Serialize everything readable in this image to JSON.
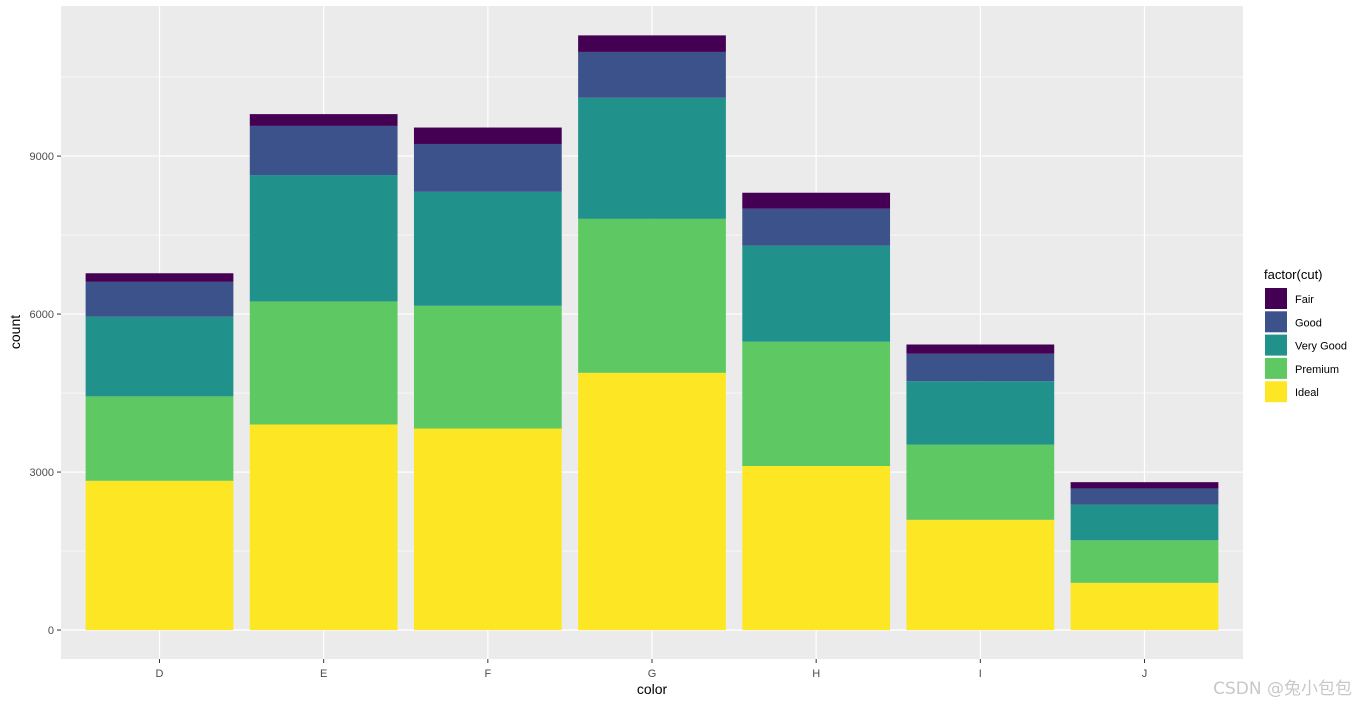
{
  "chart_data": {
    "type": "bar",
    "stacked": true,
    "title": "",
    "xlabel": "color",
    "ylabel": "count",
    "categories": [
      "D",
      "E",
      "F",
      "G",
      "H",
      "I",
      "J"
    ],
    "ylim": [
      -550,
      11850
    ],
    "y_ticks": [
      0,
      3000,
      6000,
      9000
    ],
    "y_tick_labels": [
      "0",
      "3000",
      "6000",
      "9000"
    ],
    "legend_title": "factor(cut)",
    "legend_position": "right",
    "series": [
      {
        "name": "Ideal",
        "color": "#FDE725",
        "values": [
          2834,
          3903,
          3826,
          4884,
          3115,
          2093,
          896
        ]
      },
      {
        "name": "Premium",
        "color": "#5EC962",
        "values": [
          1603,
          2337,
          2331,
          2924,
          2360,
          1428,
          808
        ]
      },
      {
        "name": "Very Good",
        "color": "#21918C",
        "values": [
          1513,
          2400,
          2164,
          2299,
          1824,
          1204,
          678
        ]
      },
      {
        "name": "Good",
        "color": "#3B528B",
        "values": [
          662,
          933,
          909,
          871,
          702,
          522,
          307
        ]
      },
      {
        "name": "Fair",
        "color": "#440154",
        "values": [
          163,
          224,
          312,
          314,
          303,
          175,
          119
        ]
      }
    ],
    "legend_order": [
      "Fair",
      "Good",
      "Very Good",
      "Premium",
      "Ideal"
    ]
  },
  "watermark": "CSDN @兔小包包"
}
